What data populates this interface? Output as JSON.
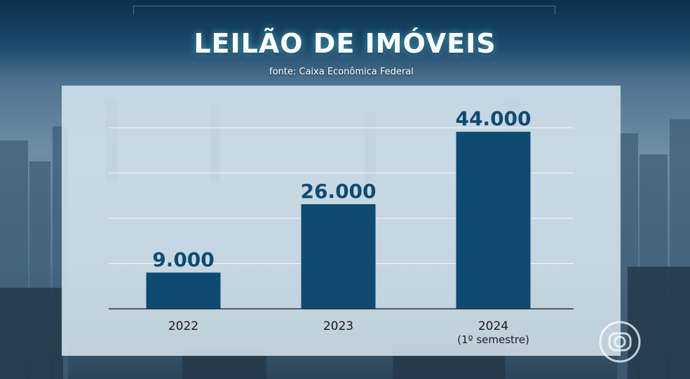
{
  "header": {
    "title": "LEILÃO DE IMÓVEIS",
    "source": "fonte: Caixa Econômica Federal"
  },
  "colors": {
    "bar": "#0f4a73",
    "value_text": "#0f4a73",
    "panel": "#d7e5ef",
    "title_glow": "#78e6e6"
  },
  "logo": {
    "icon": "globo-logo-icon"
  },
  "chart_data": {
    "type": "bar",
    "title": "LEILÃO DE IMÓVEIS",
    "subtitle": "fonte: Caixa Econômica Federal",
    "categories": [
      "2022",
      "2023",
      "2024"
    ],
    "category_sublabels": [
      "",
      "",
      "(1º semestre)"
    ],
    "values": [
      9000,
      26000,
      44000
    ],
    "value_labels": [
      "9.000",
      "26.000",
      "44.000"
    ],
    "ylim": [
      0,
      45000
    ],
    "grid": true,
    "legend": "none"
  }
}
